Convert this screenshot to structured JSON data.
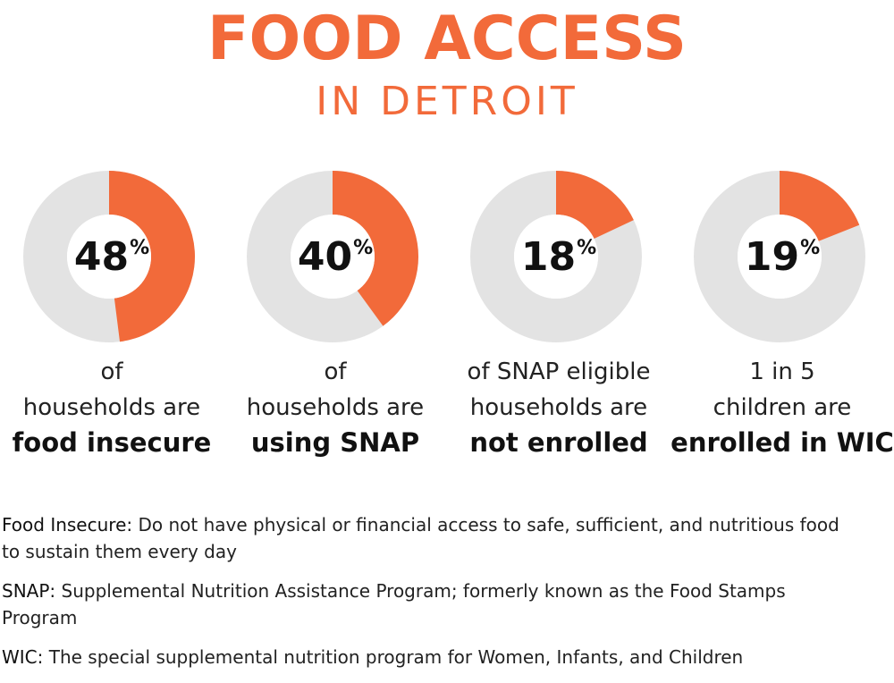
{
  "header": {
    "title": "FOOD ACCESS",
    "subtitle": "IN DETROIT"
  },
  "colors": {
    "accent": "#f26a3a",
    "ring_track": "#e3e3e3",
    "text": "#222222"
  },
  "chart_data": [
    {
      "type": "pie",
      "value": 48,
      "max": 100,
      "label": "48",
      "unit": "%",
      "lines": [
        "of",
        "households are"
      ],
      "bold": "food insecure"
    },
    {
      "type": "pie",
      "value": 40,
      "max": 100,
      "label": "40",
      "unit": "%",
      "lines": [
        "of",
        "households are"
      ],
      "bold": "using SNAP"
    },
    {
      "type": "pie",
      "value": 18,
      "max": 100,
      "label": "18",
      "unit": "%",
      "lines": [
        "of SNAP eligible",
        "households are"
      ],
      "bold": "not enrolled"
    },
    {
      "type": "pie",
      "value": 19,
      "max": 100,
      "label": "19",
      "unit": "%",
      "lines": [
        "1 in 5",
        "children are"
      ],
      "bold": "enrolled in WIC"
    }
  ],
  "definitions": [
    {
      "term": "Food Insecure:",
      "text": " Do not have physical or financial access to safe, sufficient, and nutritious food to sustain them every day"
    },
    {
      "term": "SNAP:",
      "text": " Supplemental Nutrition Assistance Program; formerly known as the Food Stamps Program"
    },
    {
      "term": "WIC:",
      "text": " The special supplemental nutrition program for Women, Infants, and Children"
    }
  ]
}
